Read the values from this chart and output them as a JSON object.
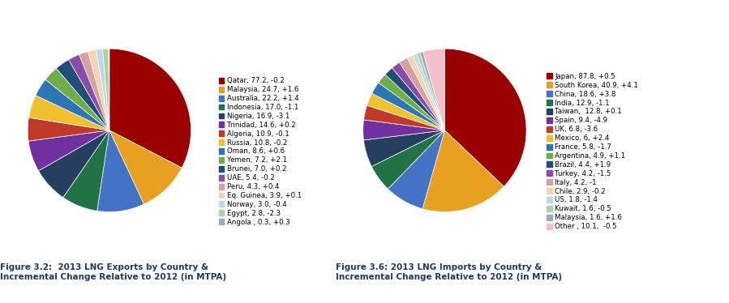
{
  "exports": {
    "labels": [
      "Qatar, 77.2, -0.2",
      "Malaysia, 24.7, +1.6",
      "Australia, 22.2, +1.4",
      "Indonesia, 17.0, -1.1",
      "Nigeria, 16.9, -3.1",
      "Trinidad, 14.6, +0.2",
      "Algeria, 10.9, -0.1",
      "Russia, 10.8, -0.2",
      "Oman, 8.6, +0.6",
      "Yemen, 7.2, +2.1",
      "Brunei, 7.0, +0.2",
      "UAE, 5.4, -0.2",
      "Peru, 4.3, +0.4",
      "Eq. Guinea, 3.9, +0.1",
      "Norway, 3.0, -0.4",
      "Egypt, 2.8, -2.3",
      "Angola , 0.3, +0.3"
    ],
    "values": [
      77.2,
      24.7,
      22.2,
      17.0,
      16.9,
      14.6,
      10.9,
      10.8,
      8.6,
      7.2,
      7.0,
      5.4,
      4.3,
      3.9,
      3.0,
      2.8,
      0.3
    ],
    "colors": [
      "#9B0000",
      "#E8A020",
      "#4472C4",
      "#217346",
      "#243F60",
      "#7030A0",
      "#C0392B",
      "#F0C030",
      "#2E75B6",
      "#70AD47",
      "#1F4E79",
      "#8B4BA8",
      "#D4A0A0",
      "#F5D5B0",
      "#BDD7EE",
      "#A8D5A0",
      "#A0A8C0"
    ],
    "title": "Figure 3.2:  2013 LNG Exports by Country &\nIncremental Change Relative to 2012 (in MTPA)"
  },
  "imports": {
    "labels": [
      "Japan, 87.8, +0.5",
      "South Korea, 40.9, +4.1",
      "China, 18.6, +3.8",
      "India, 12.9, -1.1",
      "Taiwan,  12.8, +0.1",
      "Spain, 9.4, -4.9",
      "UK, 6.8, -3.6",
      "Mexico, 6, +2.4",
      "France, 5.8, -1.7",
      "Argentina, 4.9, +1.1",
      "Brazil, 4.4, +1.9",
      "Turkey, 4.2, -1.5",
      "Italy, 4.2, -1",
      "Chile, 2.9, -0.2",
      "US, 1.8, -1.4",
      "Kuwait, 1.6, -0.5",
      "Malaysia, 1.6, +1.6",
      "Other , 10.1,  -0.5"
    ],
    "values": [
      87.8,
      40.9,
      18.6,
      12.9,
      12.8,
      9.4,
      6.8,
      6.0,
      5.8,
      4.9,
      4.4,
      4.2,
      4.2,
      2.9,
      1.8,
      1.6,
      1.6,
      10.1
    ],
    "colors": [
      "#9B0000",
      "#E8A020",
      "#4472C4",
      "#217346",
      "#243F60",
      "#7030A0",
      "#C0392B",
      "#F0C030",
      "#2E75B6",
      "#70AD47",
      "#1F4E79",
      "#8B4BA8",
      "#D4A0A0",
      "#F5D5B0",
      "#BDD7EE",
      "#A8D5A0",
      "#A0A8C0",
      "#F2C0C8"
    ],
    "title": "Figure 3.6: 2013 LNG Imports by Country &\nIncremental Change Relative to 2012 (in MTPA)"
  },
  "legend_fontsize": 6.2,
  "title_fontsize": 7.5,
  "title_color": "#1F3864",
  "bg_color": "#ffffff"
}
